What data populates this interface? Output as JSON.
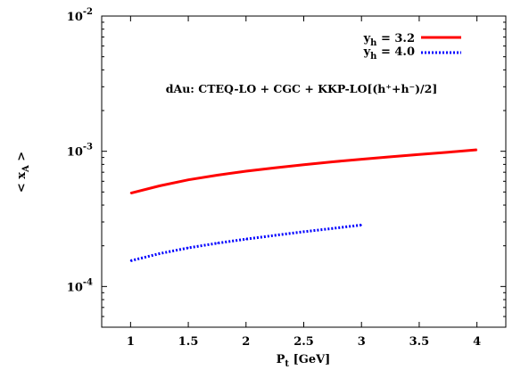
{
  "chart_data": {
    "type": "line",
    "annotation": "dAu: CTEQ-LO + CGC + KKP-LO[(h⁺+h⁻)/2]",
    "xlabel": {
      "main": "P",
      "sub": "t",
      "rest": " [GeV]"
    },
    "ylabel": {
      "open": "< x",
      "sub": "A",
      "close": " >"
    },
    "xlim": [
      0.75,
      4.25
    ],
    "ylim": [
      5e-05,
      0.01
    ],
    "yscale": "log",
    "x_ticks": [
      {
        "value": 1,
        "label": "1"
      },
      {
        "value": 1.5,
        "label": "1.5"
      },
      {
        "value": 2,
        "label": "2"
      },
      {
        "value": 2.5,
        "label": "2.5"
      },
      {
        "value": 3,
        "label": "3"
      },
      {
        "value": 3.5,
        "label": "3.5"
      },
      {
        "value": 4,
        "label": "4"
      }
    ],
    "y_ticks": [
      {
        "value": 0.01,
        "base": "10",
        "exp": "-2"
      },
      {
        "value": 0.001,
        "base": "10",
        "exp": "-3"
      },
      {
        "value": 0.0001,
        "base": "10",
        "exp": "-4"
      }
    ],
    "legend_position": "top-right",
    "series": [
      {
        "name": "y_h = 3.2",
        "label_main": "y",
        "label_sub": "h",
        "label_rest": " = 3.2",
        "color": "#ff0000",
        "style": "solid",
        "x": [
          1.0,
          1.25,
          1.5,
          1.75,
          2.0,
          2.25,
          2.5,
          2.75,
          3.0,
          3.25,
          3.5,
          3.75,
          4.0
        ],
        "values": [
          0.00049,
          0.000555,
          0.000615,
          0.000665,
          0.000712,
          0.000755,
          0.000795,
          0.000835,
          0.000873,
          0.00091,
          0.000948,
          0.000985,
          0.001025
        ]
      },
      {
        "name": "y_h = 4.0",
        "label_main": "y",
        "label_sub": "h",
        "label_rest": " = 4.0",
        "color": "#0000ff",
        "style": "dotted",
        "x": [
          1.0,
          1.25,
          1.5,
          1.75,
          2.0,
          2.25,
          2.5,
          2.75,
          3.0
        ],
        "values": [
          0.000155,
          0.000175,
          0.000193,
          0.000209,
          0.000224,
          0.000239,
          0.000254,
          0.000269,
          0.000285
        ]
      }
    ]
  }
}
